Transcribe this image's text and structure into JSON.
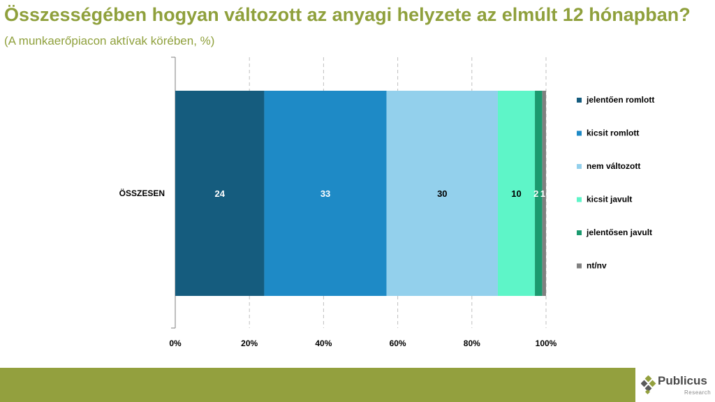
{
  "title": {
    "main": "Összességében hogyan változott az anyagi helyzete az elmúlt 12 hónapban?",
    "subtitle": "(A munkaerőpiacon aktívak körében, %)"
  },
  "chart_data": {
    "type": "bar",
    "orientation": "horizontal",
    "stacked": true,
    "percent_stacked": true,
    "categories": [
      "ÖSSZESEN"
    ],
    "series": [
      {
        "name": "jelentően romlott",
        "values": [
          24
        ],
        "color": "#155c7e",
        "label_color": "#ffffff"
      },
      {
        "name": "kicsit romlott",
        "values": [
          33
        ],
        "color": "#1e8ac6",
        "label_color": "#ffffff"
      },
      {
        "name": "nem változott",
        "values": [
          30
        ],
        "color": "#93d0ec",
        "label_color": "#000000"
      },
      {
        "name": "kicsit javult",
        "values": [
          10
        ],
        "color": "#5ef5c8",
        "label_color": "#000000"
      },
      {
        "name": "jelentősen javult",
        "values": [
          2
        ],
        "color": "#1b9a6f",
        "label_color": "#ffffff"
      },
      {
        "name": "nt/nv",
        "values": [
          1
        ],
        "color": "#808080",
        "label_color": "#ffffff"
      }
    ],
    "data_labels": [
      "24",
      "33",
      "30",
      "10",
      "2",
      "1"
    ],
    "x_ticks": [
      "0%",
      "20%",
      "40%",
      "60%",
      "80%",
      "100%"
    ],
    "xlim": [
      0,
      100
    ],
    "grid": "vertical dashed",
    "legend_position": "right"
  },
  "logo": {
    "name": "Publicus",
    "tagline": "Research"
  },
  "colors": {
    "title": "#8fa03c",
    "footer": "#93a03e"
  }
}
